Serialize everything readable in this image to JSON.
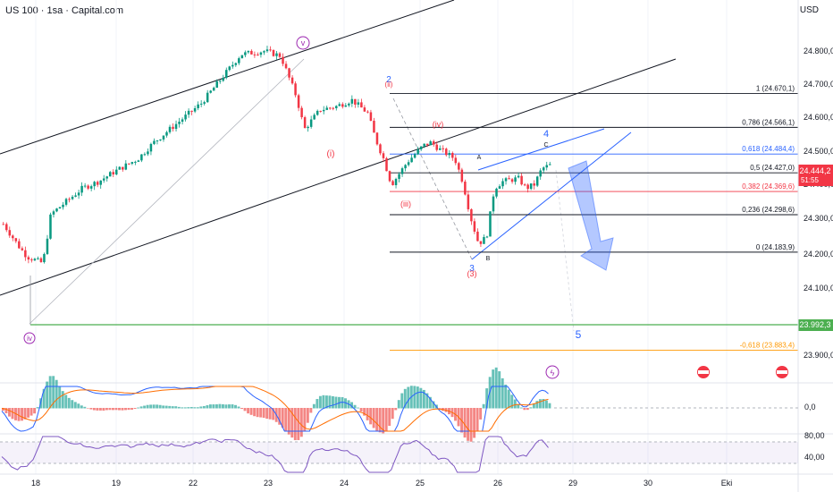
{
  "header": {
    "symbol": "US 100 · 1sa · Capital.com",
    "currency": "USD"
  },
  "colors": {
    "up": "#089981",
    "down": "#f23645",
    "wave_purple": "#9c27b0",
    "wave_blue": "#2962ff",
    "wave_red": "#f23645",
    "fib_line": "#131722",
    "fib_618": "#2962ff",
    "fib_382": "#f23645",
    "fib_ext": "#ff9800",
    "support": "#4caf50",
    "price_tag": "#f23645",
    "macd": "#2962ff",
    "signal": "#ff6d00",
    "rsi": "#7e57c2"
  },
  "chart_data": {
    "type": "candlestick",
    "x_labels": [
      "18",
      "19",
      "22",
      "23",
      "24",
      "25",
      "26",
      "29",
      "30",
      "Eki"
    ],
    "y_ticks": [
      "24.800,0",
      "24.700,0",
      "24.600,0",
      "24.500,0",
      "24.400,0",
      "24.300,0",
      "24.200,0",
      "24.100,0",
      "23.900,0"
    ],
    "ylim": [
      23850,
      24880
    ],
    "price_path": [
      [
        0,
        24270
      ],
      [
        2,
        24200
      ],
      [
        3,
        24170
      ],
      [
        5,
        24150
      ],
      [
        6,
        24300
      ],
      [
        8,
        24340
      ],
      [
        10,
        24380
      ],
      [
        12,
        24400
      ],
      [
        14,
        24430
      ],
      [
        17,
        24470
      ],
      [
        19,
        24520
      ],
      [
        21,
        24560
      ],
      [
        23,
        24600
      ],
      [
        25,
        24640
      ],
      [
        27,
        24700
      ],
      [
        29,
        24760
      ],
      [
        30,
        24790
      ],
      [
        33,
        24800
      ],
      [
        35,
        24785
      ],
      [
        37,
        24660
      ],
      [
        38,
        24560
      ],
      [
        40,
        24620
      ],
      [
        42,
        24630
      ],
      [
        44,
        24650
      ],
      [
        46,
        24610
      ],
      [
        47,
        24530
      ],
      [
        48,
        24470
      ],
      [
        49,
        24390
      ],
      [
        51,
        24460
      ],
      [
        53,
        24510
      ],
      [
        54,
        24520
      ],
      [
        55,
        24500
      ],
      [
        57,
        24470
      ],
      [
        58,
        24400
      ],
      [
        59,
        24290
      ],
      [
        60,
        24210
      ],
      [
        61,
        24230
      ],
      [
        62,
        24380
      ],
      [
        63,
        24400
      ],
      [
        65,
        24410
      ],
      [
        66,
        24380
      ],
      [
        67,
        24390
      ],
      [
        68,
        24440
      ],
      [
        69,
        24450
      ]
    ],
    "current_price": "24.444,2",
    "countdown": "51:55",
    "support_price": "23.992,3",
    "fib_levels": [
      {
        "label": "1 (24.670,1)",
        "value": 24670.1
      },
      {
        "label": "0,786 (24.566,1)",
        "value": 24566.1
      },
      {
        "label": "0,618 (24.484,4)",
        "value": 24484.4
      },
      {
        "label": "0,5 (24.427,0)",
        "value": 24427.0
      },
      {
        "label": "0,382 (24.369,6)",
        "value": 24369.6
      },
      {
        "label": "0,236 (24.298,6)",
        "value": 24298.6
      },
      {
        "label": "0 (24.183,9)",
        "value": 24183.9
      },
      {
        "label": "-0,618 (23.883,4)",
        "value": 23883.4
      }
    ],
    "wave_labels": {
      "iv_low": "iv",
      "v_top": "v",
      "i": "(i)",
      "two": "2",
      "ii": "(ii)",
      "iii": "(iii)",
      "iv_paren": "(iv)",
      "three": "3",
      "three_paren": "(3)",
      "four": "4",
      "five": "5",
      "c": "C",
      "a": "A",
      "b": "B"
    },
    "macd_ticks": [
      "0,0"
    ],
    "rsi_ticks": [
      "80,00",
      "40,00"
    ]
  }
}
